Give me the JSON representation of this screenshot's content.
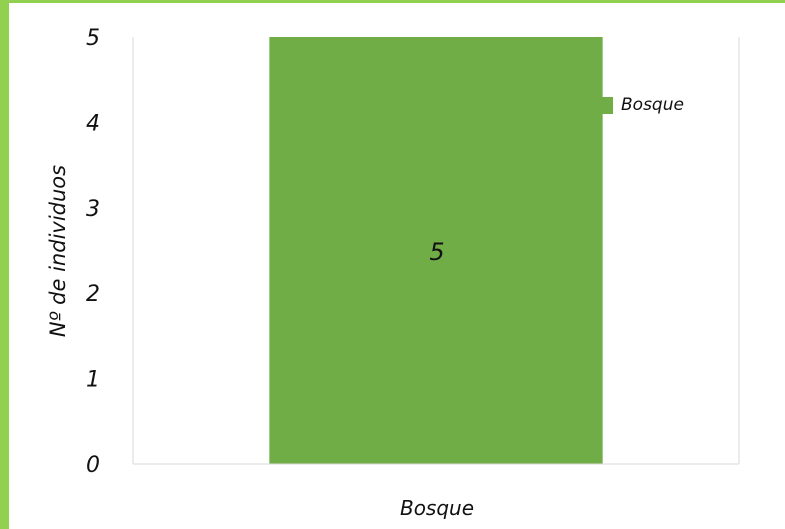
{
  "chart_data": {
    "type": "bar",
    "categories": [
      "Bosque"
    ],
    "series": [
      {
        "name": "Bosque",
        "values": [
          5
        ],
        "color": "#70ad47"
      }
    ],
    "data_labels": [
      "5"
    ],
    "xlabel": "Bosque",
    "ylabel": "Nº de individuos",
    "ylim": [
      0,
      5
    ],
    "yticks": [
      "0",
      "1",
      "2",
      "3",
      "4",
      "5"
    ],
    "grid": "vertical",
    "legend_position": "top-right"
  },
  "colors": {
    "frame": "#92d050",
    "bar": "#70ad47"
  }
}
